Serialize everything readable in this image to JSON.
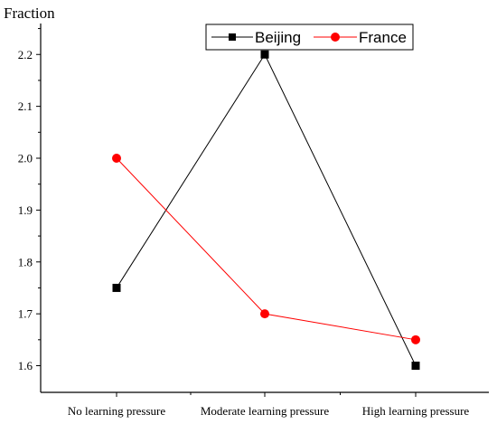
{
  "chart_data": {
    "type": "line",
    "ylabel": "Fraction",
    "xlabel": "",
    "categories": [
      "No learning pressure",
      "Moderate learning pressure",
      "High learning pressure"
    ],
    "ylim": [
      1.55,
      2.28
    ],
    "yticks": [
      "1.6",
      "1.7",
      "1.8",
      "1.9",
      "2.0",
      "2.1",
      "2.2"
    ],
    "legend_position": "top-right",
    "grid": false,
    "series": [
      {
        "name": "Beijing",
        "values": [
          1.75,
          2.2,
          1.6
        ],
        "color": "#000000",
        "marker": "square"
      },
      {
        "name": "France",
        "values": [
          2.0,
          1.7,
          1.65
        ],
        "color": "#ff0000",
        "marker": "circle"
      }
    ]
  }
}
